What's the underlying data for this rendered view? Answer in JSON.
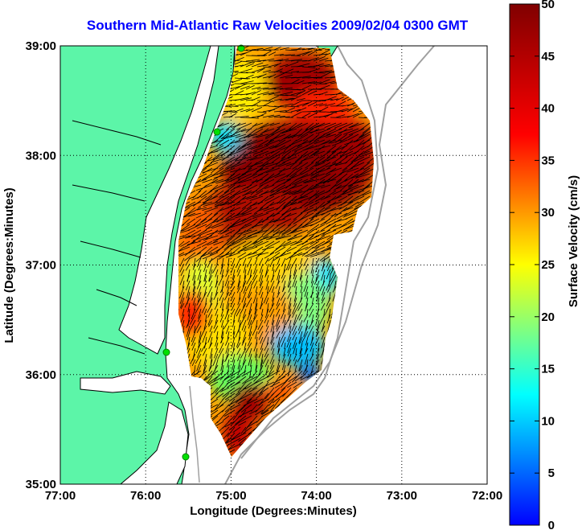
{
  "chart_data": {
    "type": "heatmap",
    "title": "Southern Mid-Atlantic Raw Velocities 2009/02/04 0300 GMT",
    "xlabel": "Longitude (Degrees:Minutes)",
    "ylabel": "Latitude (Degrees:Minutes)",
    "x_ticks": [
      "77:00",
      "76:00",
      "75:00",
      "74:00",
      "73:00",
      "72:00"
    ],
    "y_ticks": [
      "39:00",
      "38:00",
      "37:00",
      "36:00",
      "35:00"
    ],
    "xlim": [
      -77,
      -72
    ],
    "ylim": [
      35,
      39
    ],
    "grid": true,
    "colorbar": {
      "label": "Surface Velocity (cm/s)",
      "range": [
        0,
        50
      ],
      "ticks": [
        "0",
        "5",
        "10",
        "15",
        "20",
        "25",
        "30",
        "35",
        "40",
        "45",
        "50"
      ],
      "colormap": [
        "#0000ff",
        "#0080ff",
        "#00ffff",
        "#80ff80",
        "#ffff00",
        "#ff8000",
        "#ff0000",
        "#800000"
      ]
    },
    "colors": {
      "land": "#5cf5a8",
      "coastline": "#000000",
      "bathymetry": "#a0a0a0",
      "station_marker": "#00e000",
      "vector": "#000000"
    }
  }
}
